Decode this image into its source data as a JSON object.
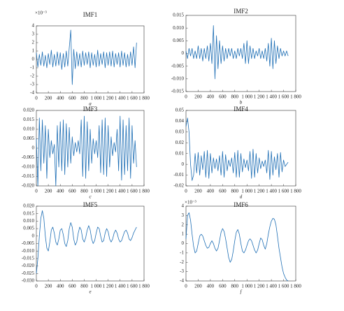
{
  "chart_data": [
    {
      "type": "line",
      "title": "IMF1",
      "xlabel": "a",
      "exponent_label": "×10⁻³",
      "color": "#1f6fb5",
      "xlim": [
        0,
        1800
      ],
      "xticks": [
        0,
        200,
        400,
        600,
        800,
        {
          "value": 1000,
          "label": "1 000"
        },
        {
          "value": 1200,
          "label": "1 200"
        },
        {
          "value": 1400,
          "label": "1 400"
        },
        {
          "value": 1600,
          "label": "1 600"
        },
        {
          "value": 1800,
          "label": "1 800"
        }
      ],
      "ylim": [
        -4,
        4
      ],
      "yticks": [
        -4,
        -3,
        -2,
        -1,
        0,
        1,
        2,
        3,
        4
      ],
      "x": [
        0,
        25,
        50,
        75,
        100,
        125,
        150,
        175,
        200,
        225,
        250,
        275,
        300,
        325,
        350,
        375,
        400,
        425,
        450,
        475,
        500,
        525,
        550,
        575,
        600,
        625,
        650,
        675,
        700,
        725,
        750,
        775,
        800,
        825,
        850,
        875,
        900,
        925,
        950,
        975,
        1000,
        1025,
        1050,
        1075,
        1100,
        1125,
        1150,
        1175,
        1200,
        1225,
        1250,
        1275,
        1300,
        1325,
        1350,
        1375,
        1400,
        1425,
        1450,
        1475,
        1500,
        1525,
        1550,
        1575,
        1600,
        1625,
        1650,
        1675
      ],
      "values": [
        0.8,
        -0.9,
        0.6,
        -0.7,
        0.9,
        -0.8,
        0.5,
        -1.0,
        0.7,
        -0.6,
        1.1,
        -0.9,
        0.6,
        -0.8,
        0.9,
        -0.7,
        0.8,
        -1.2,
        0.7,
        -0.9,
        1.0,
        -0.8,
        1.4,
        3.5,
        -3.0,
        1.2,
        -1.1,
        0.9,
        -0.8,
        0.7,
        -0.9,
        1.0,
        -0.7,
        0.8,
        -0.6,
        0.9,
        -1.0,
        0.8,
        -0.7,
        0.6,
        -0.9,
        1.1,
        -0.8,
        0.7,
        -0.6,
        0.9,
        -1.0,
        0.8,
        -0.7,
        0.9,
        -0.8,
        1.0,
        -0.9,
        0.7,
        -0.6,
        0.8,
        -0.9,
        1.0,
        -0.7,
        0.8,
        -0.9,
        0.6,
        -0.8,
        0.9,
        -0.7,
        1.5,
        -1.0,
        2.0
      ]
    },
    {
      "type": "line",
      "title": "IMF2",
      "xlabel": "b",
      "color": "#1f6fb5",
      "xlim": [
        0,
        1800
      ],
      "xticks": [
        0,
        200,
        400,
        600,
        800,
        {
          "value": 1000,
          "label": "1 000"
        },
        {
          "value": 1200,
          "label": "1 200"
        },
        {
          "value": 1400,
          "label": "1 400"
        },
        {
          "value": 1600,
          "label": "1 600"
        },
        {
          "value": 1800,
          "label": "1 800"
        }
      ],
      "ylim": [
        -0.015,
        0.015
      ],
      "yticks": [
        -0.015,
        {
          "value": -0.01,
          "label": "-0.010"
        },
        -0.005,
        0,
        0.005,
        {
          "value": 0.01,
          "label": "0.010"
        },
        0.015
      ],
      "x": [
        0,
        25,
        50,
        75,
        100,
        125,
        150,
        175,
        200,
        225,
        250,
        275,
        300,
        325,
        350,
        375,
        400,
        425,
        450,
        475,
        500,
        525,
        550,
        575,
        600,
        625,
        650,
        675,
        700,
        725,
        750,
        775,
        800,
        825,
        850,
        875,
        900,
        925,
        950,
        975,
        1000,
        1025,
        1050,
        1075,
        1100,
        1125,
        1150,
        1175,
        1200,
        1225,
        1250,
        1275,
        1300,
        1325,
        1350,
        1375,
        1400,
        1425,
        1450,
        1475,
        1500,
        1525,
        1550,
        1575,
        1600,
        1625,
        1650,
        1675
      ],
      "values": [
        0.001,
        -0.002,
        0.002,
        -0.001,
        0.002,
        -0.002,
        0.001,
        -0.002,
        0.003,
        -0.002,
        0.002,
        -0.003,
        0.002,
        -0.002,
        0.003,
        -0.003,
        0.004,
        -0.004,
        0.011,
        -0.01,
        0.007,
        -0.006,
        0.005,
        -0.004,
        0.003,
        -0.003,
        0.002,
        -0.002,
        0.002,
        -0.001,
        0.002,
        -0.002,
        0.001,
        -0.002,
        0.002,
        -0.001,
        0.002,
        -0.002,
        0.004,
        -0.004,
        0.005,
        -0.004,
        0.003,
        -0.002,
        0.002,
        -0.002,
        0.001,
        -0.001,
        0.002,
        -0.002,
        0.001,
        -0.002,
        0.002,
        -0.003,
        0.004,
        -0.005,
        0.006,
        -0.006,
        0.005,
        -0.004,
        0.003,
        -0.002,
        0.002,
        -0.001,
        0.001,
        -0.001,
        0.001,
        -0.001
      ]
    },
    {
      "type": "line",
      "title": "IMF3",
      "xlabel": "c",
      "color": "#1f6fb5",
      "xlim": [
        0,
        1800
      ],
      "xticks": [
        0,
        200,
        400,
        600,
        800,
        {
          "value": 1000,
          "label": "1 000"
        },
        {
          "value": 1200,
          "label": "1 200"
        },
        {
          "value": 1400,
          "label": "1 400"
        },
        {
          "value": 1600,
          "label": "1 600"
        },
        {
          "value": 1800,
          "label": "1 800"
        }
      ],
      "ylim": [
        -0.02,
        0.02
      ],
      "yticks": [
        {
          "value": -0.02,
          "label": "-0.020"
        },
        -0.015,
        {
          "value": -0.01,
          "label": "-0.010"
        },
        -0.005,
        0,
        0.005,
        {
          "value": 0.01,
          "label": "0.010"
        },
        0.015,
        {
          "value": 0.02,
          "label": "0.020"
        }
      ],
      "x": [
        0,
        25,
        50,
        75,
        100,
        125,
        150,
        175,
        200,
        225,
        250,
        275,
        300,
        325,
        350,
        375,
        400,
        425,
        450,
        475,
        500,
        525,
        550,
        575,
        600,
        625,
        650,
        675,
        700,
        725,
        750,
        775,
        800,
        825,
        850,
        875,
        900,
        925,
        950,
        975,
        1000,
        1025,
        1050,
        1075,
        1100,
        1125,
        1150,
        1175,
        1200,
        1225,
        1250,
        1275,
        1300,
        1325,
        1350,
        1375,
        1400,
        1425,
        1450,
        1475,
        1500,
        1525,
        1550,
        1575,
        1600,
        1625,
        1650,
        1675
      ],
      "values": [
        0.005,
        -0.02,
        0.016,
        -0.012,
        0.015,
        -0.008,
        0.012,
        -0.016,
        0.01,
        -0.005,
        0.004,
        -0.003,
        0.002,
        -0.02,
        0.012,
        -0.01,
        0.014,
        -0.012,
        0.015,
        -0.014,
        0.013,
        -0.01,
        0.011,
        -0.008,
        0.006,
        -0.004,
        0.003,
        -0.002,
        0.004,
        -0.003,
        0.015,
        -0.015,
        0.017,
        -0.016,
        0.014,
        -0.012,
        0.01,
        -0.008,
        0.005,
        -0.003,
        0.004,
        -0.005,
        0.012,
        -0.013,
        0.015,
        -0.014,
        0.016,
        -0.015,
        0.012,
        -0.01,
        0.006,
        -0.004,
        0.003,
        -0.002,
        0.01,
        -0.012,
        0.017,
        -0.017,
        0.015,
        -0.014,
        0.012,
        -0.012,
        0.016,
        -0.016,
        0.012,
        -0.008,
        0.004,
        -0.01
      ]
    },
    {
      "type": "line",
      "title": "IMF4",
      "xlabel": "d",
      "color": "#1f6fb5",
      "xlim": [
        0,
        1800
      ],
      "xticks": [
        0,
        200,
        400,
        600,
        800,
        {
          "value": 1000,
          "label": "1 000"
        },
        {
          "value": 1200,
          "label": "1 200"
        },
        {
          "value": 1400,
          "label": "1 400"
        },
        {
          "value": 1600,
          "label": "1 600"
        },
        {
          "value": 1800,
          "label": "1 800"
        }
      ],
      "ylim": [
        -0.02,
        0.05
      ],
      "yticks": [
        -0.02,
        -0.01,
        0,
        0.01,
        0.02,
        0.03,
        0.04,
        0.05
      ],
      "x": [
        0,
        25,
        50,
        75,
        100,
        125,
        150,
        175,
        200,
        225,
        250,
        275,
        300,
        325,
        350,
        375,
        400,
        425,
        450,
        475,
        500,
        525,
        550,
        575,
        600,
        625,
        650,
        675,
        700,
        725,
        750,
        775,
        800,
        825,
        850,
        875,
        900,
        925,
        950,
        975,
        1000,
        1025,
        1050,
        1075,
        1100,
        1125,
        1150,
        1175,
        1200,
        1225,
        1250,
        1275,
        1300,
        1325,
        1350,
        1375,
        1400,
        1425,
        1450,
        1475,
        1500,
        1525,
        1550,
        1575,
        1600,
        1625,
        1650,
        1675
      ],
      "values": [
        0.035,
        0.043,
        0.03,
        0.0,
        -0.015,
        -0.01,
        0.01,
        -0.008,
        0.011,
        -0.01,
        0.008,
        -0.005,
        0.012,
        -0.012,
        0.013,
        -0.013,
        0.01,
        -0.008,
        0.006,
        -0.004,
        0.005,
        -0.006,
        0.008,
        -0.01,
        0.012,
        -0.012,
        0.009,
        -0.006,
        0.004,
        -0.002,
        0.006,
        -0.008,
        0.011,
        -0.012,
        0.013,
        -0.012,
        0.01,
        -0.007,
        0.005,
        -0.003,
        0.004,
        -0.006,
        0.012,
        -0.013,
        0.014,
        -0.012,
        0.01,
        -0.008,
        0.006,
        -0.004,
        0.003,
        -0.002,
        0.004,
        -0.008,
        0.013,
        -0.014,
        0.012,
        -0.01,
        0.007,
        -0.005,
        0.01,
        -0.012,
        0.011,
        -0.007,
        0.004,
        -0.002,
        0.0,
        0.002
      ]
    },
    {
      "type": "line",
      "title": "IMF5",
      "xlabel": "e",
      "color": "#1f6fb5",
      "xlim": [
        0,
        1800
      ],
      "xticks": [
        0,
        200,
        400,
        600,
        800,
        {
          "value": 1000,
          "label": "1 000"
        },
        {
          "value": 1200,
          "label": "1 200"
        },
        {
          "value": 1400,
          "label": "1 400"
        },
        {
          "value": 1600,
          "label": "1 600"
        },
        {
          "value": 1800,
          "label": "1 800"
        }
      ],
      "ylim": [
        -0.03,
        0.02
      ],
      "yticks": [
        {
          "value": -0.03,
          "label": "-0.030"
        },
        -0.025,
        {
          "value": -0.02,
          "label": "-0.020"
        },
        -0.015,
        {
          "value": -0.01,
          "label": "-0.010"
        },
        -0.005,
        0,
        0.005,
        {
          "value": 0.01,
          "label": "0.010"
        },
        0.015,
        {
          "value": 0.02,
          "label": "0.020"
        }
      ],
      "x": [
        0,
        25,
        50,
        75,
        100,
        125,
        150,
        175,
        200,
        225,
        250,
        275,
        300,
        325,
        350,
        375,
        400,
        425,
        450,
        475,
        500,
        525,
        550,
        575,
        600,
        625,
        650,
        675,
        700,
        725,
        750,
        775,
        800,
        825,
        850,
        875,
        900,
        925,
        950,
        975,
        1000,
        1025,
        1050,
        1075,
        1100,
        1125,
        1150,
        1175,
        1200,
        1225,
        1250,
        1275,
        1300,
        1325,
        1350,
        1375,
        1400,
        1425,
        1450,
        1475,
        1500,
        1525,
        1550,
        1575,
        1600,
        1625,
        1650,
        1675
      ],
      "values": [
        -0.025,
        -0.015,
        0.0,
        0.012,
        0.017,
        0.012,
        0.0,
        -0.008,
        -0.01,
        -0.004,
        0.004,
        0.006,
        0.002,
        -0.004,
        -0.006,
        -0.002,
        0.004,
        0.005,
        0.001,
        -0.005,
        -0.007,
        -0.003,
        0.005,
        0.009,
        0.006,
        -0.002,
        -0.006,
        -0.004,
        0.002,
        0.006,
        0.004,
        -0.002,
        -0.004,
        -0.001,
        0.004,
        0.007,
        0.004,
        -0.002,
        -0.005,
        -0.003,
        0.002,
        0.006,
        0.005,
        0.0,
        -0.004,
        -0.003,
        0.002,
        0.005,
        0.003,
        -0.002,
        -0.004,
        -0.002,
        0.002,
        0.004,
        0.002,
        -0.002,
        -0.004,
        -0.003,
        0.0,
        0.003,
        0.004,
        0.002,
        -0.002,
        -0.003,
        -0.001,
        0.002,
        0.004,
        0.006
      ]
    },
    {
      "type": "line",
      "title": "IMF6",
      "xlabel": "f",
      "exponent_label": "×10⁻³",
      "color": "#1f6fb5",
      "xlim": [
        0,
        1800
      ],
      "xticks": [
        0,
        200,
        400,
        600,
        800,
        {
          "value": 1000,
          "label": "1 000"
        },
        {
          "value": 1200,
          "label": "1 200"
        },
        {
          "value": 1400,
          "label": "1 400"
        },
        {
          "value": 1600,
          "label": "1 600"
        },
        {
          "value": 1800,
          "label": "1 800"
        }
      ],
      "ylim": [
        -4,
        4
      ],
      "yticks": [
        -4,
        -3,
        -2,
        -1,
        0,
        1,
        2,
        3,
        4
      ],
      "x": [
        0,
        25,
        50,
        75,
        100,
        125,
        150,
        175,
        200,
        225,
        250,
        275,
        300,
        325,
        350,
        375,
        400,
        425,
        450,
        475,
        500,
        525,
        550,
        575,
        600,
        625,
        650,
        675,
        700,
        725,
        750,
        775,
        800,
        825,
        850,
        875,
        900,
        925,
        950,
        975,
        1000,
        1025,
        1050,
        1075,
        1100,
        1125,
        1150,
        1175,
        1200,
        1225,
        1250,
        1275,
        1300,
        1325,
        1350,
        1375,
        1400,
        1425,
        1450,
        1475,
        1500,
        1525,
        1550,
        1575,
        1600,
        1625,
        1650,
        1675
      ],
      "values": [
        0.5,
        3.0,
        3.3,
        2.5,
        1.0,
        -0.3,
        -1.0,
        -0.8,
        0.0,
        0.8,
        1.0,
        0.8,
        0.3,
        -0.2,
        -0.5,
        -0.4,
        0.0,
        0.3,
        0.0,
        -0.5,
        -0.8,
        -0.5,
        0.3,
        1.2,
        1.6,
        1.3,
        0.5,
        -0.5,
        -1.5,
        -2.0,
        -1.7,
        -0.8,
        0.3,
        1.2,
        1.5,
        1.0,
        0.0,
        -0.8,
        -1.0,
        -0.7,
        -0.2,
        0.3,
        0.5,
        0.3,
        -0.2,
        -0.7,
        -1.0,
        -0.7,
        0.0,
        0.6,
        0.4,
        -0.2,
        -0.6,
        0.0,
        1.0,
        1.8,
        2.4,
        2.7,
        2.6,
        2.0,
        0.8,
        -0.5,
        -1.5,
        -2.5,
        -3.2,
        -3.6,
        -3.9,
        -4.0
      ]
    }
  ]
}
